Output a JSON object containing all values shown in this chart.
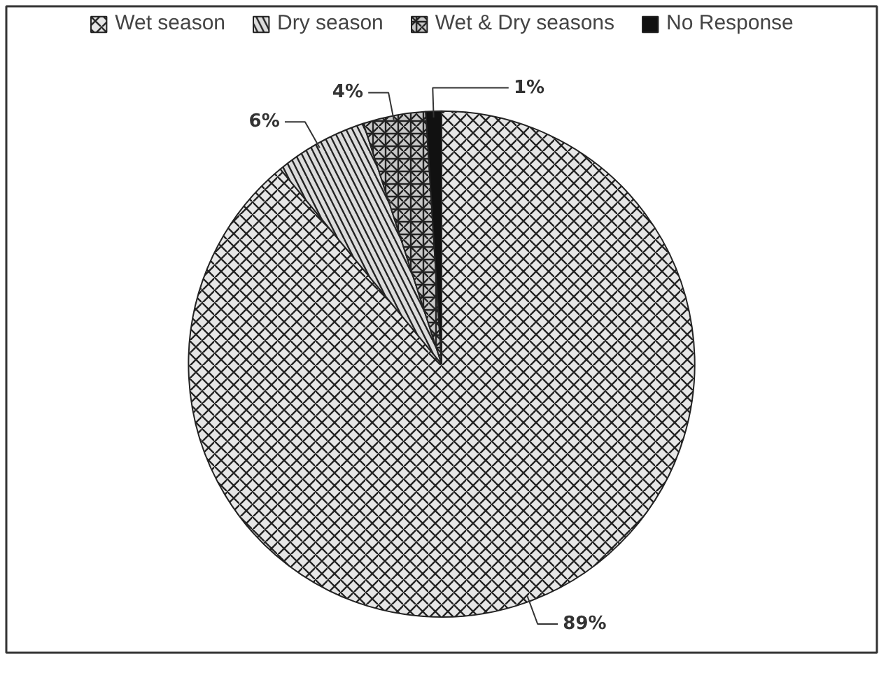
{
  "chart_data": {
    "type": "pie",
    "categories": [
      "Wet season",
      "Dry season",
      "Wet & Dry seasons",
      "No Response"
    ],
    "values": [
      89,
      6,
      4,
      1
    ],
    "colors": [
      "#e6e6e6",
      "#dcdcdc",
      "#c8c8c8",
      "#111111"
    ],
    "value_labels": [
      "89%",
      "6%",
      "4%",
      "1%"
    ],
    "legend": "top"
  }
}
